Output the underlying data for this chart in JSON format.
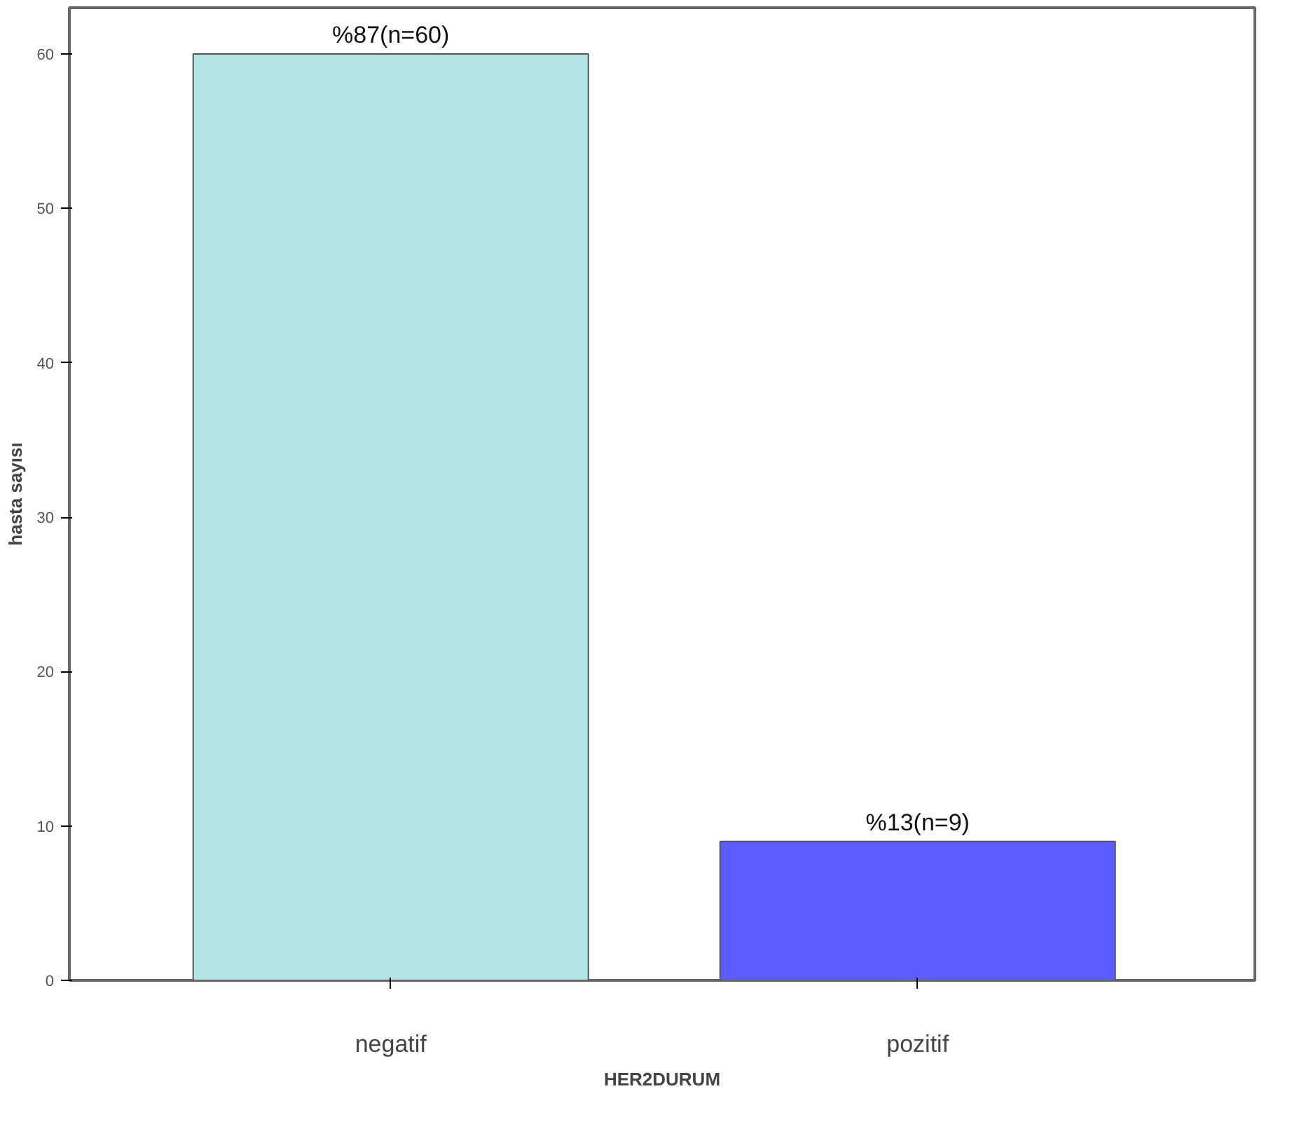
{
  "chart_data": {
    "type": "bar",
    "xlabel": "HER2DURUM",
    "ylabel": "hasta sayısı",
    "categories": [
      "negatif",
      "pozitif"
    ],
    "values": [
      60,
      9
    ],
    "colors": [
      "#b3e5e6",
      "#5a5cff"
    ],
    "value_labels": [
      "%87(n=60)",
      "%13(n=9)"
    ],
    "ylim": [
      0,
      63
    ],
    "yticks": [
      0,
      10,
      20,
      30,
      40,
      50,
      60
    ],
    "grid": false
  }
}
